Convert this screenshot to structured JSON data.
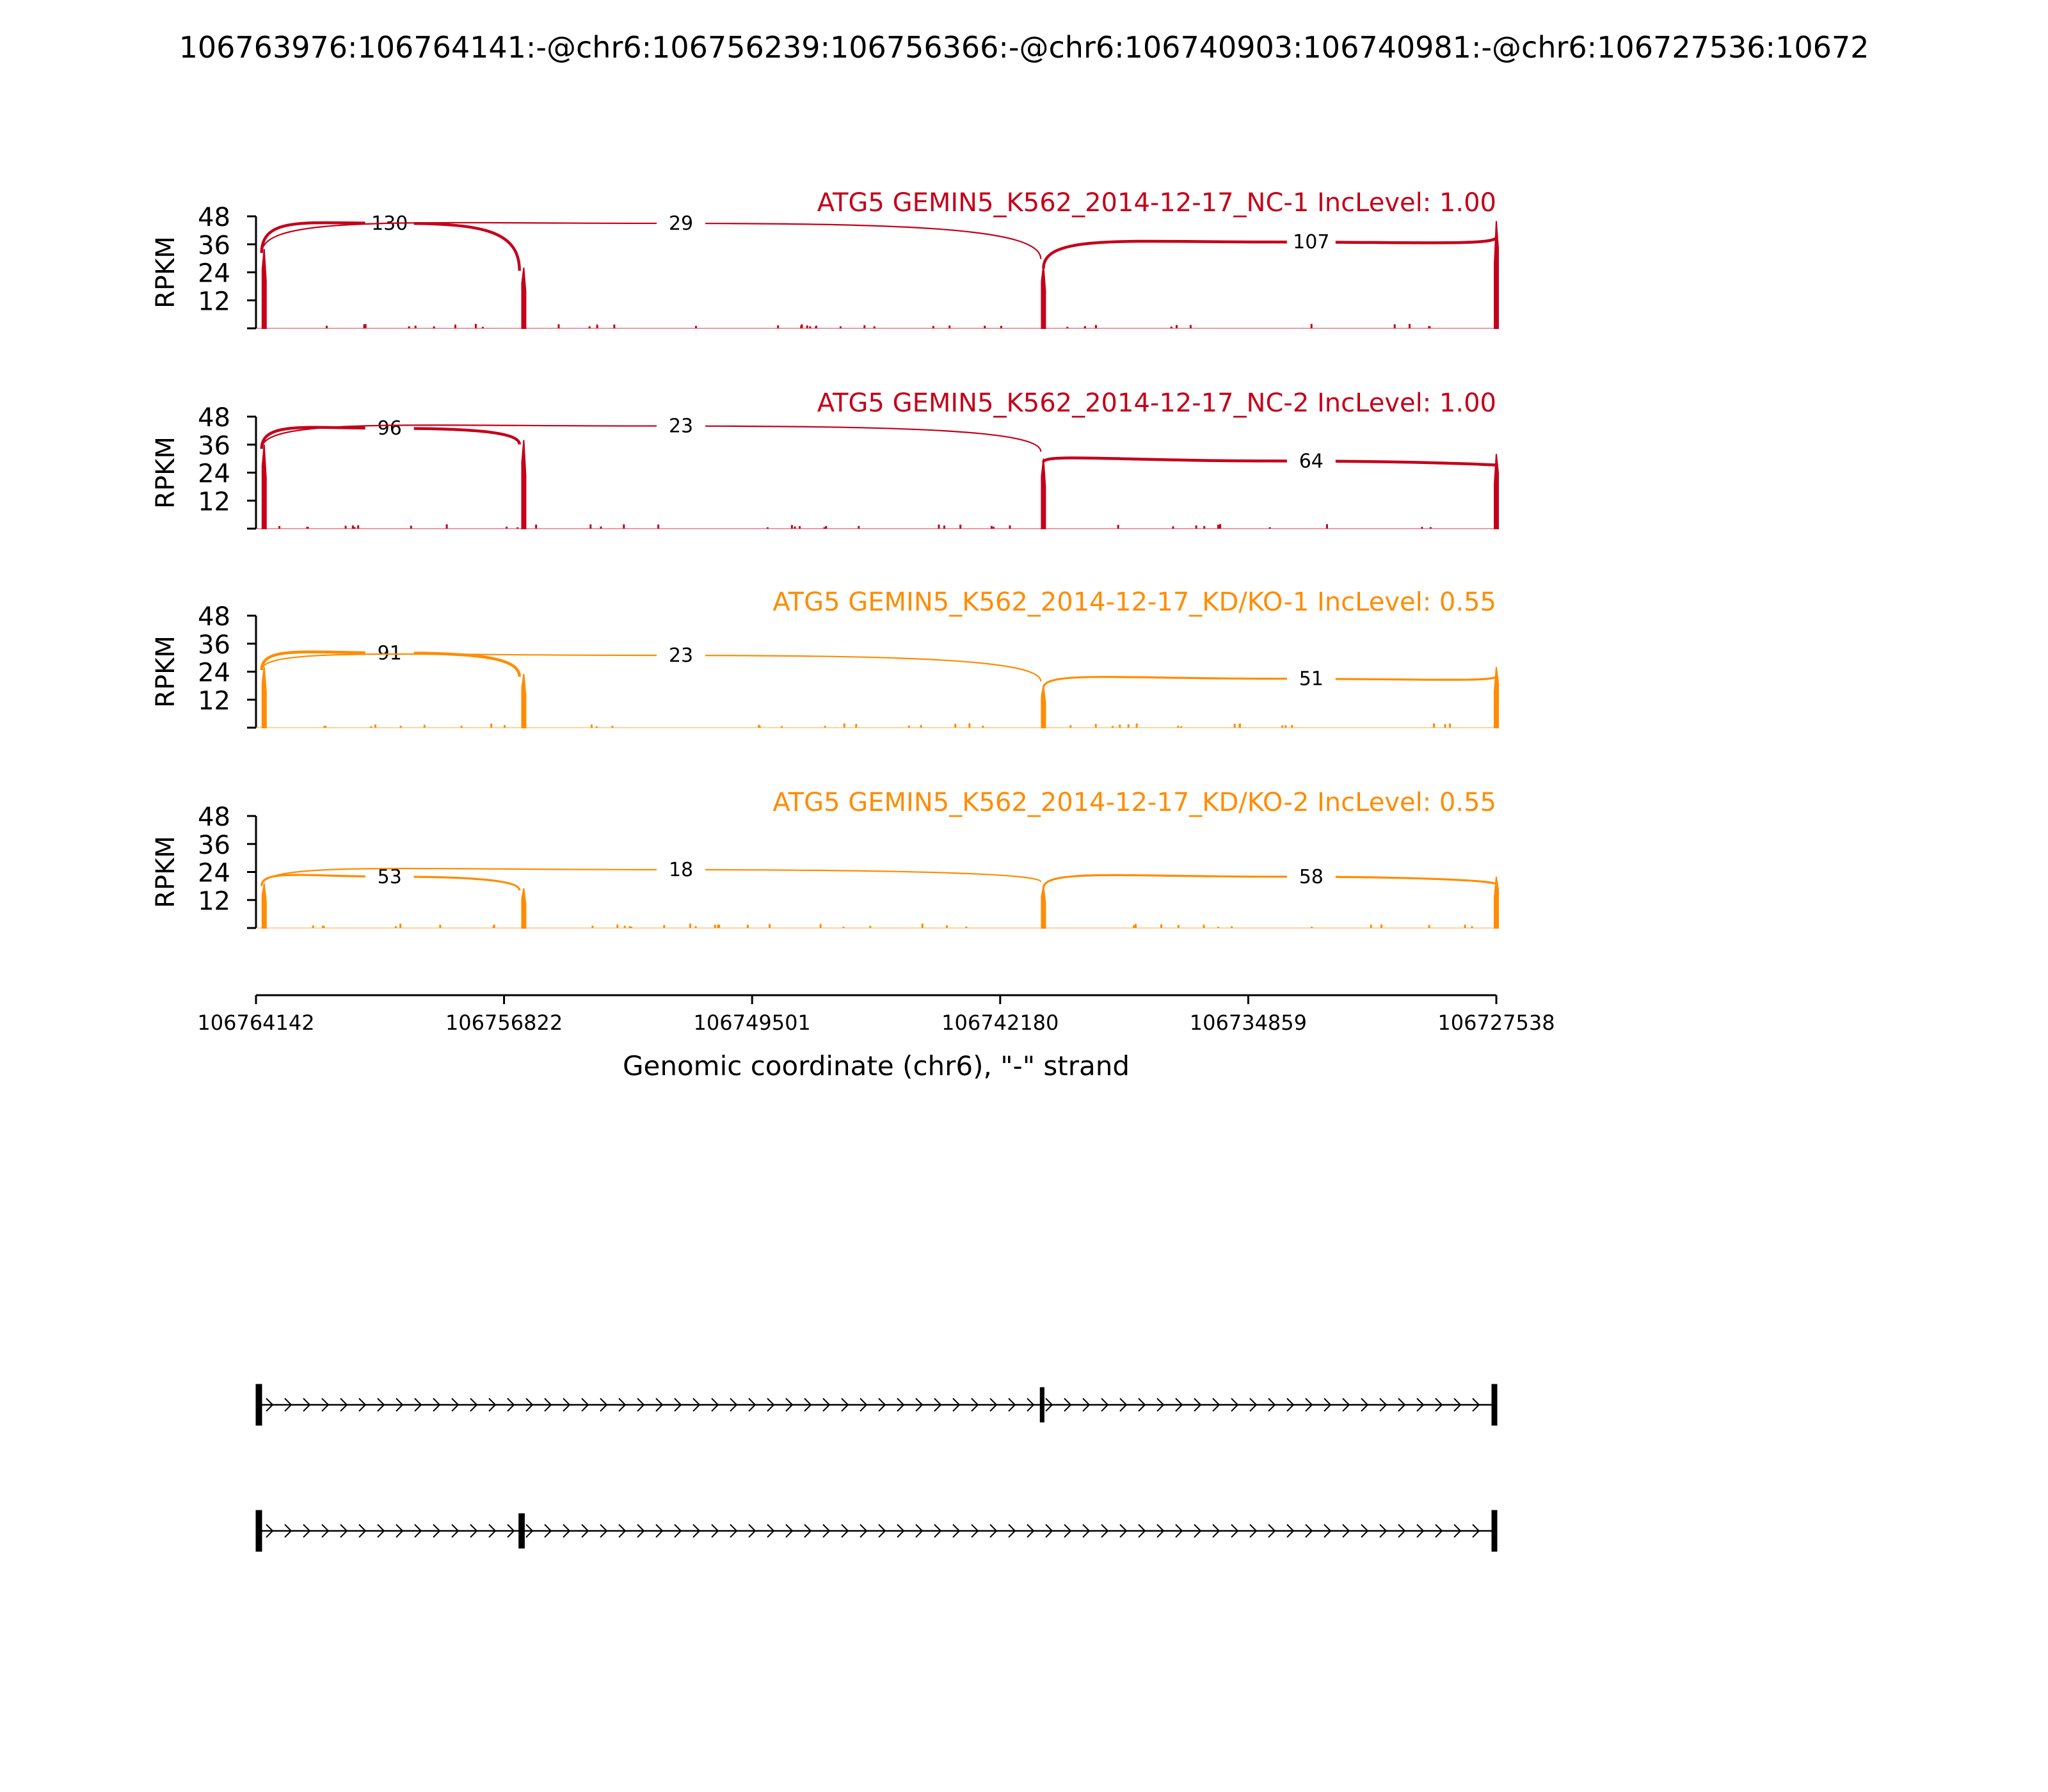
{
  "title": "106763976:106764141:-@chr6:106756239:106756366:-@chr6:106740903:106740981:-@chr6:106727536:10672",
  "colors": {
    "nc": "#c4001a",
    "kd": "#ff8c00",
    "axis": "#000000"
  },
  "chart_data": {
    "type": "sashimi",
    "ylabel": "RPKM",
    "xlabel": "Genomic coordinate (chr6), \"-\" strand",
    "yticks": [
      "12",
      "24",
      "36",
      "48"
    ],
    "ylim": [
      0,
      48
    ],
    "xtick_labels": [
      "106764142",
      "106756822",
      "106749501",
      "106742180",
      "106734859",
      "106727538"
    ],
    "xrange": [
      106764142,
      106727538
    ],
    "panels": [
      {
        "label": "ATG5 GEMIN5_K562_2014-12-17_NC-1 IncLevel: 1.00",
        "group": "nc",
        "exon_heights": [
          34,
          26,
          27,
          46
        ],
        "junctions": [
          {
            "from": 106763976,
            "to": 106756366,
            "count": "130",
            "height": 45
          },
          {
            "from": 106763976,
            "to": 106740981,
            "count": "29",
            "height": 45
          },
          {
            "from": 106740903,
            "to": 106727538,
            "count": "107",
            "height": 37
          }
        ]
      },
      {
        "label": "ATG5 GEMIN5_K562_2014-12-17_NC-2 IncLevel: 1.00",
        "group": "nc",
        "exon_heights": [
          36,
          38,
          30,
          32
        ],
        "junctions": [
          {
            "from": 106763976,
            "to": 106756366,
            "count": "96",
            "height": 43
          },
          {
            "from": 106763976,
            "to": 106740981,
            "count": "23",
            "height": 44
          },
          {
            "from": 106740903,
            "to": 106727538,
            "count": "64",
            "height": 29
          }
        ]
      },
      {
        "label": "ATG5 GEMIN5_K562_2014-12-17_KD/KO-1 IncLevel: 0.55",
        "group": "kd",
        "exon_heights": [
          26,
          23,
          18,
          26
        ],
        "junctions": [
          {
            "from": 106763976,
            "to": 106756366,
            "count": "91",
            "height": 32
          },
          {
            "from": 106763976,
            "to": 106740981,
            "count": "23",
            "height": 31
          },
          {
            "from": 106740903,
            "to": 106727538,
            "count": "51",
            "height": 21
          }
        ]
      },
      {
        "label": "ATG5 GEMIN5_K562_2014-12-17_KD/KO-2 IncLevel: 0.55",
        "group": "kd",
        "exon_heights": [
          19,
          17,
          18,
          22
        ],
        "junctions": [
          {
            "from": 106763976,
            "to": 106756366,
            "count": "53",
            "height": 22
          },
          {
            "from": 106763976,
            "to": 106740981,
            "count": "18",
            "height": 25
          },
          {
            "from": 106740903,
            "to": 106727538,
            "count": "58",
            "height": 22
          }
        ]
      }
    ],
    "isoforms": [
      {
        "exons": [
          [
            106764141,
            106763976
          ],
          [
            106740981,
            106740903
          ],
          [
            106727600,
            106727536
          ]
        ]
      },
      {
        "exons": [
          [
            106764141,
            106763976
          ],
          [
            106756366,
            106756239
          ],
          [
            106727600,
            106727536
          ]
        ]
      }
    ]
  }
}
